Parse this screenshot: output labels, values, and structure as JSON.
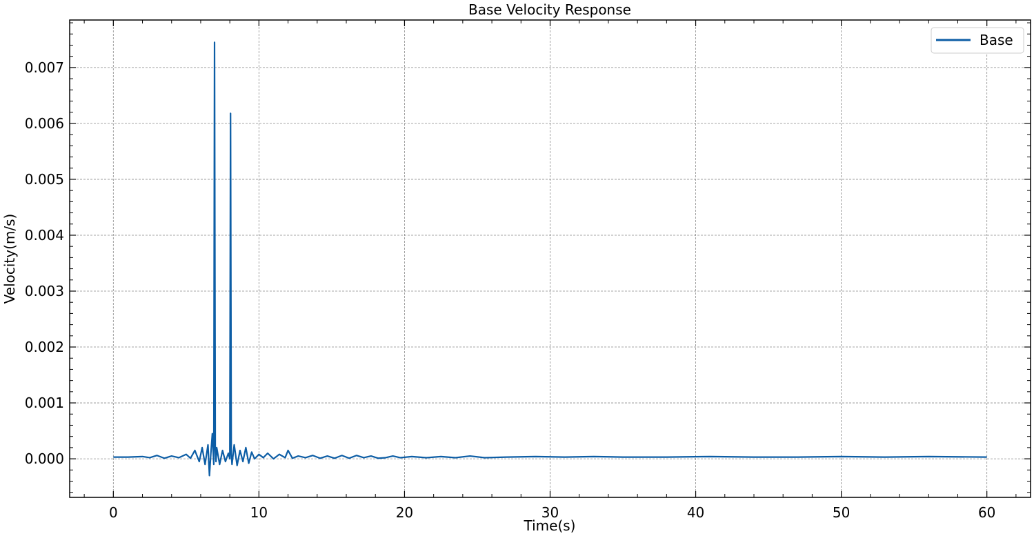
{
  "chart_data": {
    "type": "line",
    "title": "Base Velocity Response",
    "xlabel": "Time(s)",
    "ylabel": "Velocity(m/s)",
    "xlim": [
      -3,
      63
    ],
    "ylim": [
      -0.00069,
      0.00785
    ],
    "xticks": [
      0,
      10,
      20,
      30,
      40,
      50,
      60
    ],
    "yticks": [
      0.0,
      0.001,
      0.002,
      0.003,
      0.004,
      0.005,
      0.006,
      0.007
    ],
    "xtick_labels": [
      "0",
      "10",
      "20",
      "30",
      "40",
      "50",
      "60"
    ],
    "ytick_labels": [
      "0.000",
      "0.001",
      "0.002",
      "0.003",
      "0.004",
      "0.005",
      "0.006",
      "0.007"
    ],
    "grid": true,
    "legend_position": "top-right",
    "series": [
      {
        "name": "Base",
        "color": "#0c5da5",
        "x": [
          0,
          1,
          2,
          2.5,
          3,
          3.5,
          4,
          4.5,
          5,
          5.3,
          5.6,
          5.9,
          6.1,
          6.3,
          6.5,
          6.6,
          6.7,
          6.8,
          6.9,
          6.95,
          7.0,
          7.05,
          7.1,
          7.3,
          7.5,
          7.7,
          7.9,
          8.0,
          8.05,
          8.1,
          8.15,
          8.3,
          8.5,
          8.7,
          8.9,
          9.1,
          9.3,
          9.5,
          9.7,
          10.0,
          10.3,
          10.6,
          11.0,
          11.4,
          11.8,
          12.0,
          12.3,
          12.7,
          13.2,
          13.7,
          14.2,
          14.7,
          15.2,
          15.7,
          16.2,
          16.7,
          17.2,
          17.7,
          18.2,
          18.7,
          19.2,
          19.7,
          20.5,
          21.5,
          22.5,
          23.5,
          24.5,
          25.5,
          27,
          29,
          31,
          33,
          35,
          38,
          41,
          44,
          47,
          50,
          53,
          56,
          60
        ],
        "values": [
          3e-05,
          3e-05,
          4e-05,
          2e-05,
          6e-05,
          1e-05,
          5e-05,
          2e-05,
          8e-05,
          1e-05,
          0.00015,
          -5e-05,
          0.0002,
          -0.0001,
          0.00025,
          -0.0003,
          0.0001,
          0.00045,
          -0.0001,
          0.00745,
          0.0002,
          -5e-05,
          0.0002,
          -0.0001,
          0.00015,
          -5e-05,
          0.0001,
          0.0,
          0.00618,
          0.0001,
          -0.0001,
          0.00025,
          -0.00012,
          0.00015,
          -5e-05,
          0.0002,
          -8e-05,
          0.00012,
          0.0,
          8e-05,
          2e-05,
          0.0001,
          0.0,
          8e-05,
          2e-05,
          0.00015,
          1e-05,
          5e-05,
          2e-05,
          6e-05,
          1e-05,
          5e-05,
          1e-05,
          6e-05,
          1e-05,
          6e-05,
          2e-05,
          5e-05,
          1e-05,
          2e-05,
          5e-05,
          2e-05,
          4e-05,
          2e-05,
          4e-05,
          2e-05,
          5e-05,
          2e-05,
          3e-05,
          4e-05,
          3e-05,
          4e-05,
          3e-05,
          3e-05,
          4e-05,
          3e-05,
          3e-05,
          4e-05,
          3e-05,
          4e-05,
          3e-05
        ]
      }
    ]
  }
}
